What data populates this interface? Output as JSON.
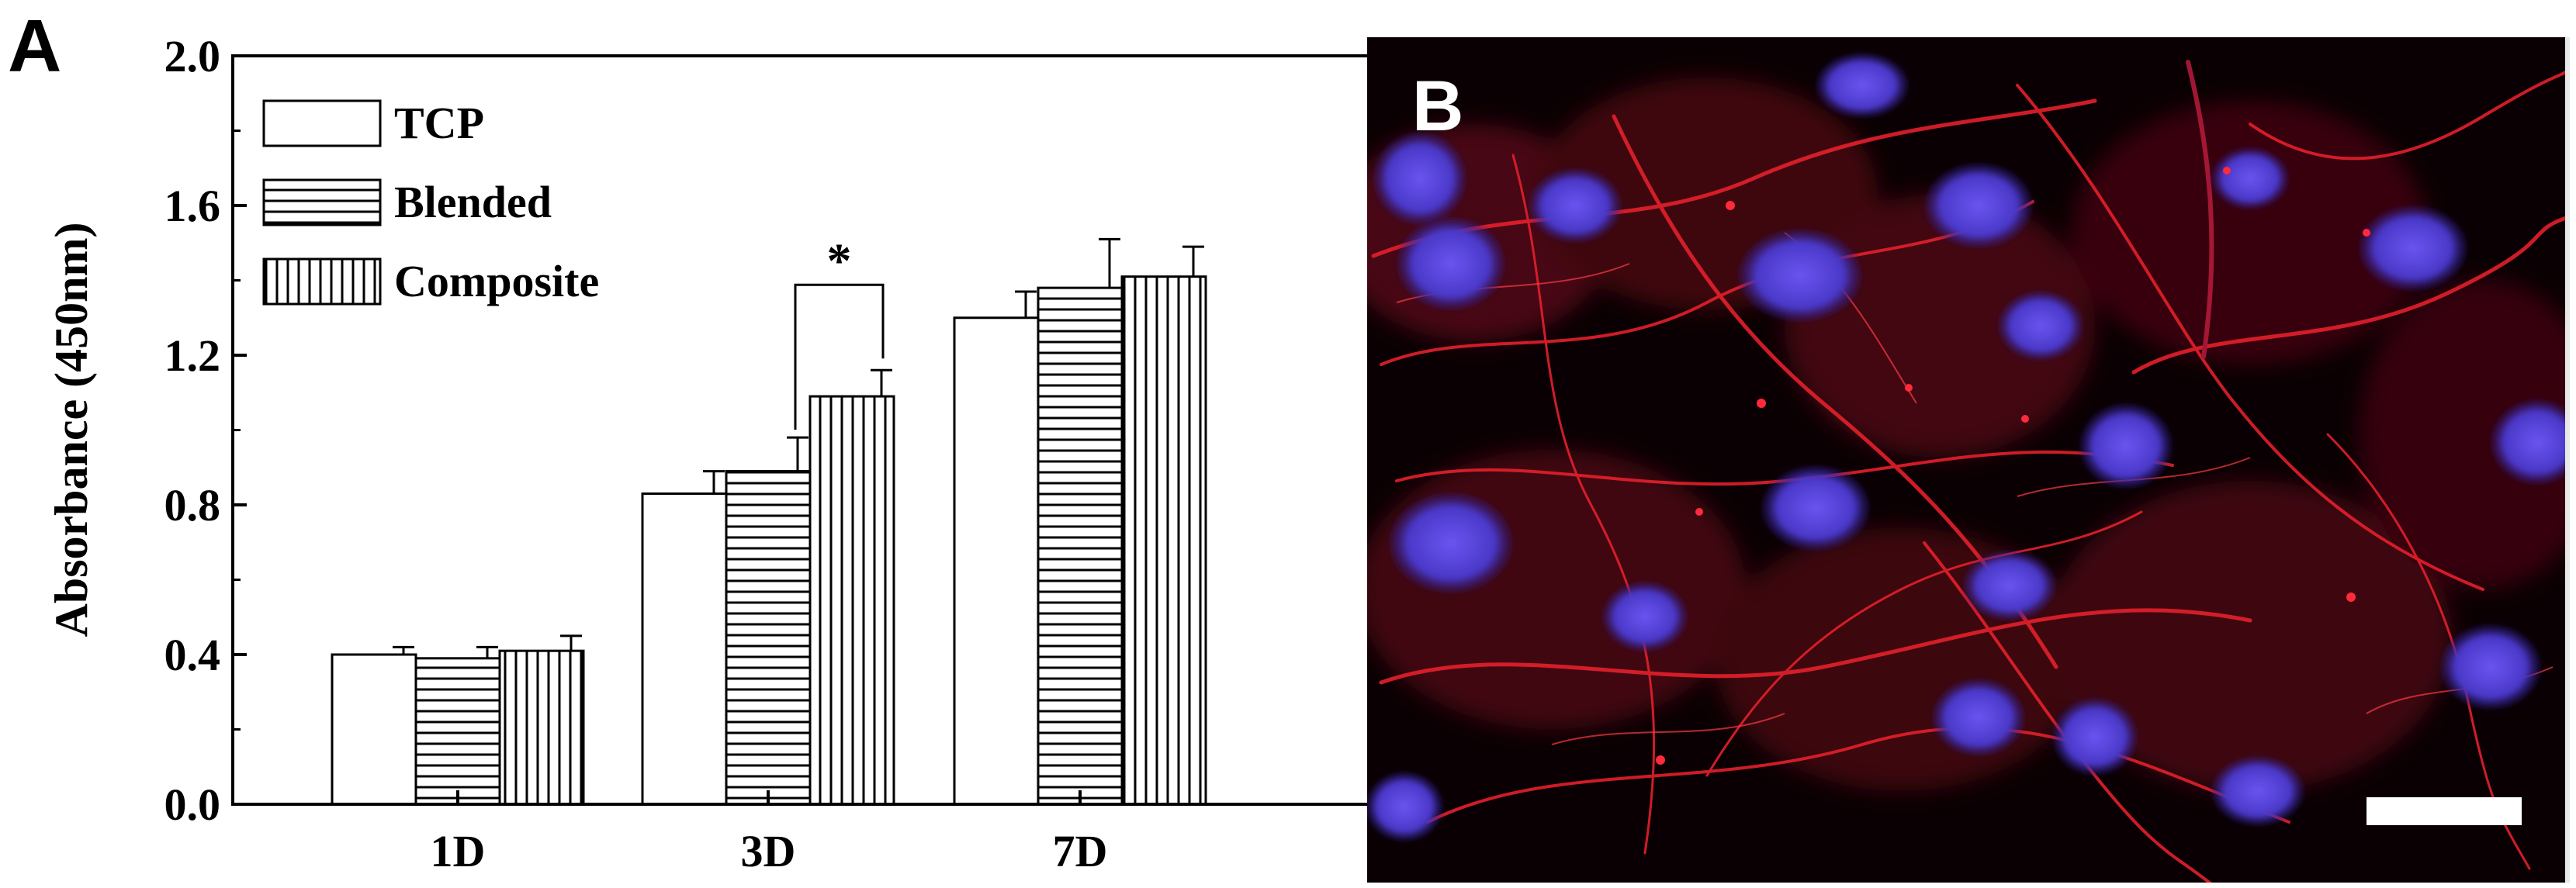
{
  "panels": {
    "a": "A",
    "b": "B"
  },
  "chart_data": {
    "type": "bar",
    "categories": [
      "1D",
      "3D",
      "7D"
    ],
    "series": [
      {
        "name": "TCP",
        "pattern": "none",
        "values": [
          0.4,
          0.83,
          1.3
        ],
        "errors": [
          0.02,
          0.06,
          0.07
        ]
      },
      {
        "name": "Blended",
        "pattern": "horizontal-lines",
        "values": [
          0.39,
          0.89,
          1.38
        ],
        "errors": [
          0.03,
          0.09,
          0.13
        ]
      },
      {
        "name": "Composite",
        "pattern": "vertical-lines",
        "values": [
          0.41,
          1.09,
          1.41
        ],
        "errors": [
          0.04,
          0.07,
          0.08
        ]
      }
    ],
    "ylabel": "Absorbance (450nm)",
    "xlabel": "",
    "ylim": [
      0.0,
      2.0
    ],
    "yticks": [
      "0.0",
      "0.4",
      "0.8",
      "1.2",
      "1.6",
      "2.0"
    ],
    "legend_position": "top-left",
    "annotations": [
      {
        "text": "*",
        "between": [
          "Blended",
          "Composite"
        ],
        "category": "3D"
      }
    ]
  },
  "micrograph": {
    "description_stain_colors": {
      "actin": "#e0202a",
      "nuclei": "#4a3fd0",
      "background": "#000000"
    },
    "scale_bar": true
  }
}
